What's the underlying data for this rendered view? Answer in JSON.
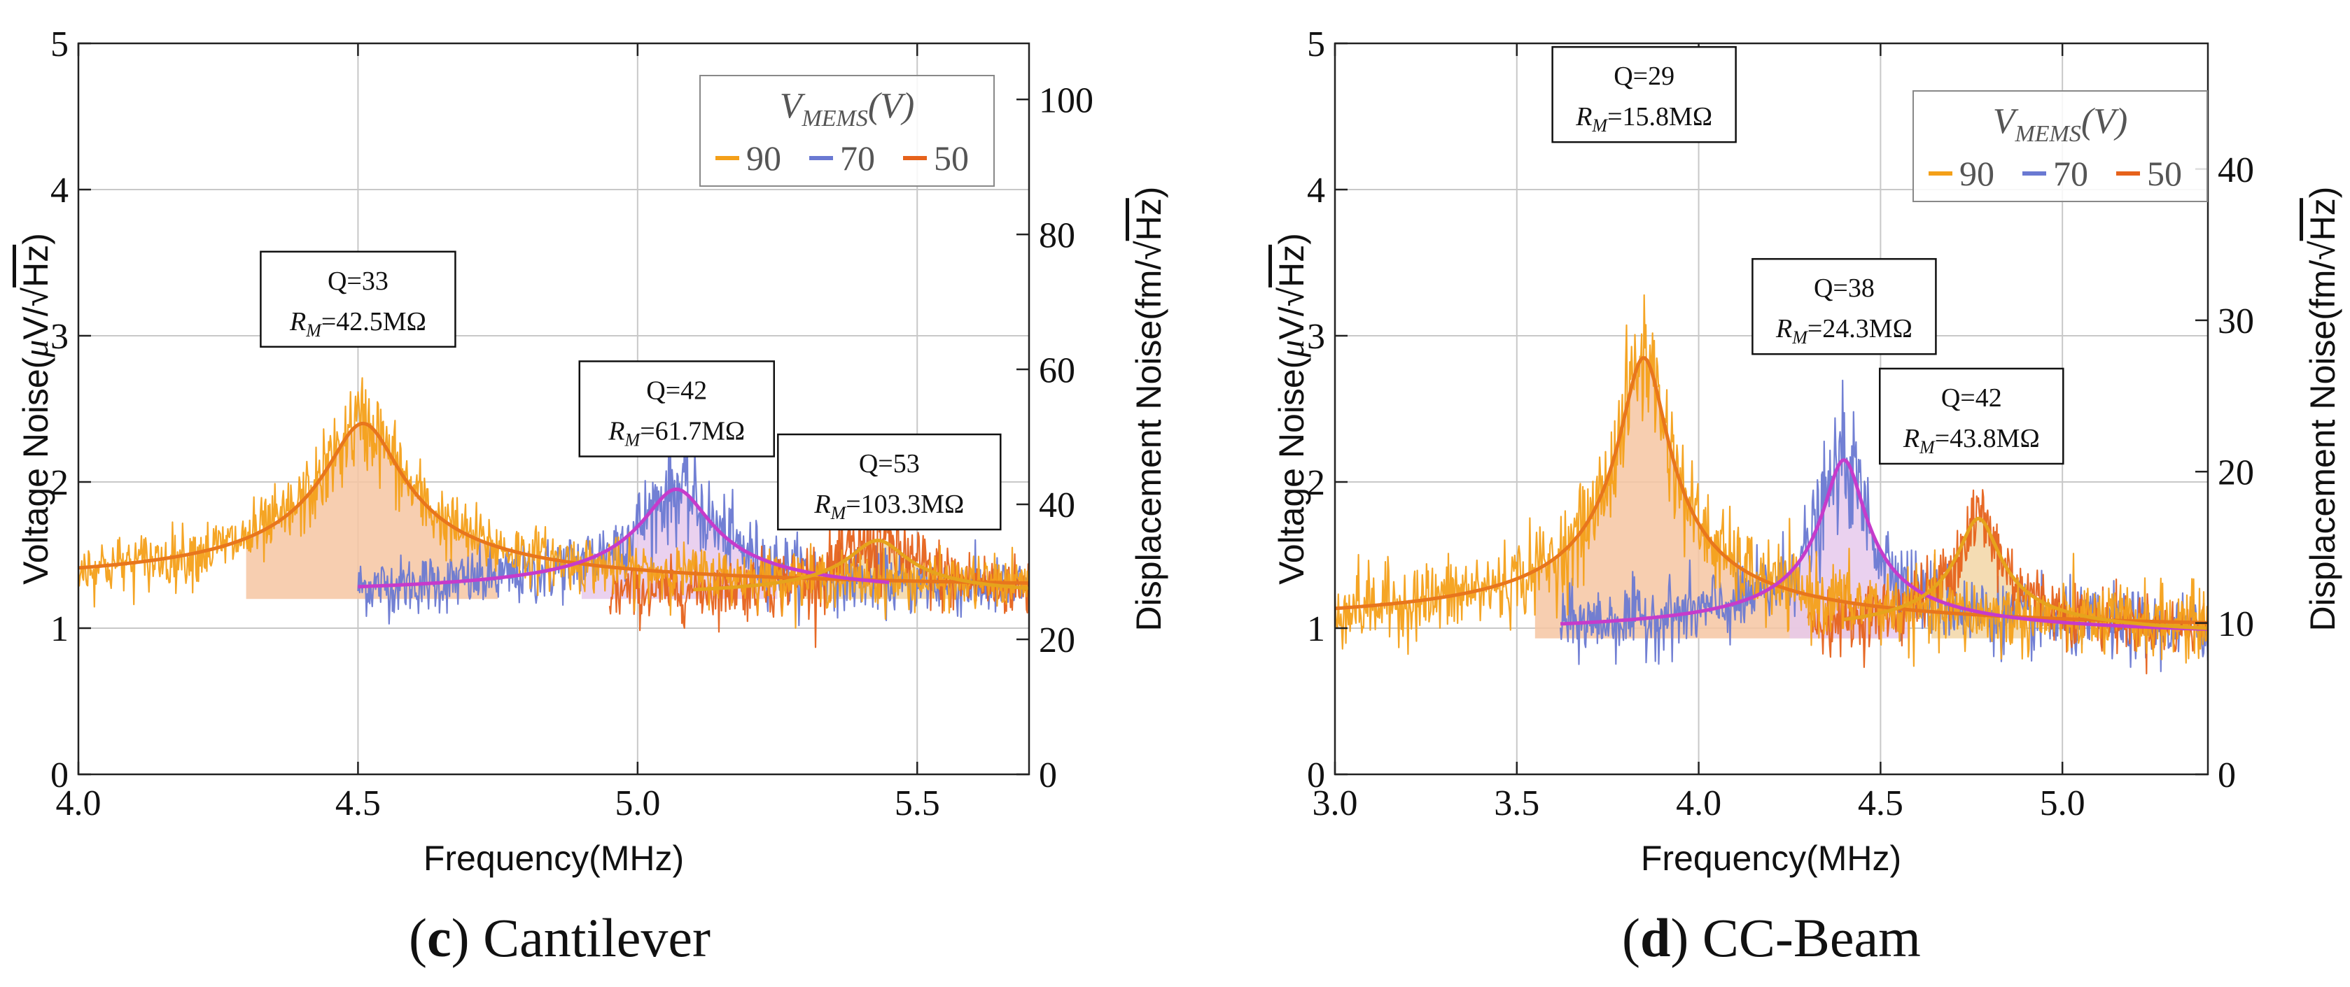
{
  "colors": {
    "v90": "#F4A019",
    "v70": "#6A79D2",
    "v50": "#E6621B",
    "fit90": "#E8761C",
    "fit70": "#C63BCB",
    "fit50": "#E6A31C",
    "fill90": "#F6C6A2",
    "fill70": "#E6C9EC",
    "fill50": "#F2D6A6",
    "grid": "#C8C8C8",
    "axis": "#222222"
  },
  "chart_data": [
    {
      "type": "line",
      "panel_label": "c",
      "caption_text": "Cantilever",
      "xlabel": "Frequency(MHz)",
      "ylabel": "Voltage Noise(μV/√Hz)",
      "ylabel_left": "Voltage Noise(",
      "ylabel_mu": "μ",
      "ylabel_tail": "V/",
      "y2label_left": "Displacement Noise(fm/",
      "sqrt_hz": "Hz",
      "y2label_close": ")",
      "xlim": [
        4.0,
        5.7
      ],
      "ylim": [
        0,
        5
      ],
      "y2lim": [
        0,
        108.3
      ],
      "xticks": [
        4.0,
        4.5,
        5.0,
        5.5
      ],
      "xtick_labels": [
        "4.0",
        "4.5",
        "5.0",
        "5.5"
      ],
      "yticks": [
        0,
        1,
        2,
        3,
        4,
        5
      ],
      "ytick_labels": [
        "0",
        "1",
        "2",
        "3",
        "4",
        "5"
      ],
      "y2ticks": [
        0,
        20,
        40,
        60,
        80,
        100
      ],
      "y2tick_labels": [
        "0",
        "20",
        "40",
        "60",
        "80",
        "100"
      ],
      "legend": {
        "title": "V",
        "title_sub": "MEMS",
        "title_unit": "(V)",
        "entries": [
          "90",
          "70",
          "50"
        ],
        "placement": "top-right"
      },
      "series": [
        {
          "name": "90",
          "color_key": "v90",
          "fit_key": "fit90",
          "fill_key": "fill90",
          "f0": 4.51,
          "Q": 33,
          "baseline": 1.25,
          "peak": 2.4,
          "noise": 0.085,
          "x_range": [
            4.0,
            5.7
          ],
          "fill_base": 1.2,
          "fill_x_range": [
            4.3,
            4.75
          ],
          "fit_x_range": [
            4.0,
            5.7
          ],
          "annotation": {
            "q": "Q=33",
            "rm_label": "R",
            "rm_sub": "M",
            "rm_value": "=42.5MΩ",
            "x": 4.5,
            "y": 3.25
          }
        },
        {
          "name": "70",
          "color_key": "v70",
          "fit_key": "fit70",
          "fill_key": "fill70",
          "f0": 5.07,
          "Q": 42,
          "baseline": 1.2,
          "peak": 1.95,
          "noise": 0.09,
          "x_range": [
            4.5,
            5.7
          ],
          "fill_base": 1.2,
          "fill_x_range": [
            4.9,
            5.25
          ],
          "fit_x_range": [
            4.5,
            5.45
          ],
          "annotation": {
            "q": "Q=42",
            "rm_label": "R",
            "rm_sub": "M",
            "rm_value": "=61.7MΩ",
            "x": 5.07,
            "y": 2.5
          }
        },
        {
          "name": "50",
          "color_key": "v50",
          "fit_key": "fit50",
          "fill_key": "fill50",
          "f0": 5.43,
          "Q": 53,
          "baseline": 1.2,
          "peak": 1.6,
          "noise": 0.09,
          "x_range": [
            4.95,
            5.7
          ],
          "fill_base": 1.2,
          "fill_x_range": [
            5.3,
            5.58
          ],
          "fit_x_range": [
            5.1,
            5.7
          ],
          "annotation": {
            "q": "Q=53",
            "rm_label": "R",
            "rm_sub": "M",
            "rm_value": "=103.3MΩ",
            "x": 5.45,
            "y": 2.0
          }
        }
      ]
    },
    {
      "type": "line",
      "panel_label": "d",
      "caption_text": "CC-Beam",
      "xlabel": "Frequency(MHz)",
      "ylabel": "Voltage Noise(μV/√Hz)",
      "ylabel_left": "Voltage Noise(",
      "ylabel_mu": "μ",
      "ylabel_tail": "V/",
      "y2label_left": "Displacement Noise(fm/",
      "sqrt_hz": "Hz",
      "y2label_close": ")",
      "xlim": [
        3.0,
        5.4
      ],
      "ylim": [
        0,
        5
      ],
      "y2lim": [
        0,
        48.3
      ],
      "xticks": [
        3.0,
        3.5,
        4.0,
        4.5,
        5.0
      ],
      "xtick_labels": [
        "3.0",
        "3.5",
        "4.0",
        "4.5",
        "5.0"
      ],
      "yticks": [
        0,
        1,
        2,
        3,
        4,
        5
      ],
      "ytick_labels": [
        "0",
        "1",
        "2",
        "3",
        "4",
        "5"
      ],
      "y2ticks": [
        0,
        10,
        20,
        30,
        40
      ],
      "y2tick_labels": [
        "0",
        "10",
        "20",
        "30",
        "40"
      ],
      "legend": {
        "title": "V",
        "title_sub": "MEMS",
        "title_unit": "(V)",
        "entries": [
          "90",
          "70",
          "50"
        ],
        "placement": "top-right"
      },
      "series": [
        {
          "name": "90",
          "color_key": "v90",
          "fit_key": "fit90",
          "fill_key": "fill90",
          "f0": 3.85,
          "Q": 29,
          "baseline": 0.97,
          "peak": 2.85,
          "noise": 0.12,
          "x_range": [
            3.0,
            5.4
          ],
          "fill_base": 0.93,
          "fill_x_range": [
            3.55,
            4.5
          ],
          "fit_x_range": [
            3.0,
            5.4
          ],
          "annotation": {
            "q": "Q=29",
            "rm_label": "R",
            "rm_sub": "M",
            "rm_value": "=15.8MΩ",
            "x": 3.85,
            "y": 4.65
          }
        },
        {
          "name": "70",
          "color_key": "v70",
          "fit_key": "fit70",
          "fill_key": "fill70",
          "f0": 4.4,
          "Q": 38,
          "baseline": 0.93,
          "peak": 2.15,
          "noise": 0.11,
          "x_range": [
            3.62,
            5.4
          ],
          "fill_base": 0.93,
          "fill_x_range": [
            4.25,
            4.58
          ],
          "fit_x_range": [
            3.62,
            5.4
          ],
          "annotation": {
            "q": "Q=38",
            "rm_label": "R",
            "rm_sub": "M",
            "rm_value": "=24.3MΩ",
            "x": 4.4,
            "y": 3.2
          }
        },
        {
          "name": "50",
          "color_key": "v50",
          "fit_key": "fit50",
          "fill_key": "fill50",
          "f0": 4.77,
          "Q": 42,
          "baseline": 0.93,
          "peak": 1.75,
          "noise": 0.09,
          "x_range": [
            4.3,
            5.4
          ],
          "fill_base": 0.93,
          "fill_x_range": [
            4.64,
            4.9
          ],
          "fit_x_range": [
            4.4,
            5.4
          ],
          "annotation": {
            "q": "Q=42",
            "rm_label": "R",
            "rm_sub": "M",
            "rm_value": "=43.8MΩ",
            "x": 4.75,
            "y": 2.45
          }
        }
      ]
    }
  ]
}
